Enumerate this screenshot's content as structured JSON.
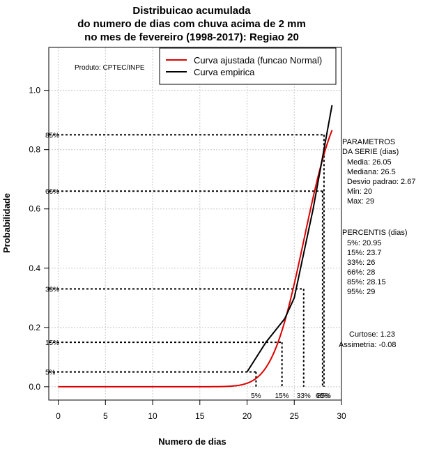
{
  "chart_data": {
    "type": "line",
    "title": [
      "Distribuicao acumulada",
      "do numero de dias com chuva acima de 2 mm",
      "no mes de fevereiro (1998-2017): Regiao 20"
    ],
    "xlabel": "Numero de dias",
    "ylabel": "Probabilidade",
    "xlim": [
      -1,
      30
    ],
    "ylim": [
      -0.045,
      1.145
    ],
    "xticks": [
      0,
      5,
      10,
      15,
      20,
      25,
      30
    ],
    "yticks": [
      0.0,
      0.2,
      0.4,
      0.6,
      0.8,
      1.0
    ],
    "xtick_labels": [
      "0",
      "5",
      "10",
      "15",
      "20",
      "25",
      "30"
    ],
    "ytick_labels": [
      "0.0",
      "0.2",
      "0.4",
      "0.6",
      "0.8",
      "1.0"
    ],
    "grid": true,
    "source_note": "Produto: CPTEC/INPE",
    "legend": {
      "position": "top-right",
      "entries": [
        {
          "label": "Curva ajustada (funcao Normal)",
          "color": "#dd0000"
        },
        {
          "label": "Curva empirica",
          "color": "#000000"
        }
      ]
    },
    "normal_fit": {
      "mean": 26.05,
      "sd": 2.67,
      "x_from": 0,
      "x_to": 29
    },
    "series": [
      {
        "name": "Curva empirica",
        "x": [
          20,
          22,
          24,
          25,
          27,
          29
        ],
        "y": [
          0.05,
          0.15,
          0.23,
          0.3,
          0.6,
          0.95
        ]
      }
    ],
    "percentile_lines": [
      {
        "label": "5%",
        "value": 20.95,
        "prob": 0.05
      },
      {
        "label": "15%",
        "value": 23.7,
        "prob": 0.15
      },
      {
        "label": "33%",
        "value": 26,
        "prob": 0.33
      },
      {
        "label": "66%",
        "value": 28,
        "prob": 0.66
      },
      {
        "label": "85%",
        "value": 28.15,
        "prob": 0.85
      }
    ]
  },
  "stats": {
    "params_title": [
      "PARAMETROS",
      "DA SERIE (dias)"
    ],
    "media": "Media: 26.05",
    "mediana": "Mediana: 26.5",
    "desvio": "Desvio padrao: 2.67",
    "min": "Min: 20",
    "max": "Max: 29",
    "percentis_title": "PERCENTIS (dias)",
    "p5": "5%: 20.95",
    "p15": "15%: 23.7",
    "p33": "33%: 26",
    "p66": "66%: 28",
    "p85": "85%: 28.15",
    "p95": "95%: 29",
    "curtose": "Curtose: 1.23",
    "assimetria": "Assimetria: -0.08"
  }
}
